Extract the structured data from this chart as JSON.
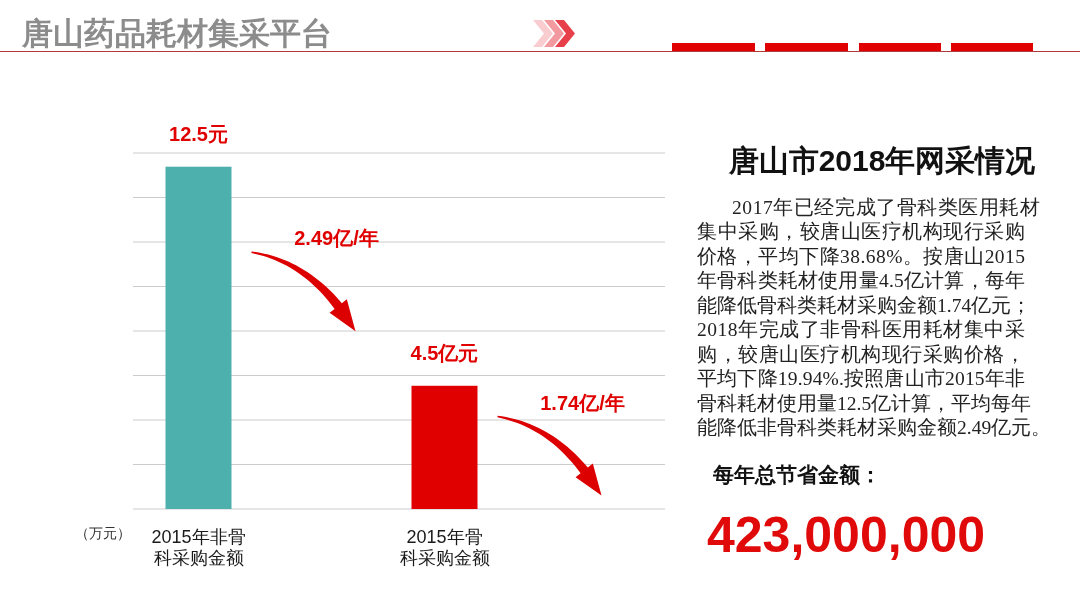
{
  "chart_data": [
    {
      "type": "bar",
      "title": "唐山药品耗材集采平台",
      "ylabel": "（万元）",
      "categories": [
        "2015年非骨科采购金额",
        "2015年骨科采购金额"
      ],
      "values": [
        12.5,
        4.5
      ],
      "colors": [
        "#4db0ad",
        "#e00000"
      ],
      "value_labels": [
        "12.5元",
        "4.5亿元"
      ],
      "ylim": [
        0,
        13
      ],
      "yticks": [
        {
          "value": 0,
          "label": null
        },
        {
          "value": 1.625,
          "label": null
        },
        {
          "value": 3.25,
          "label": null
        },
        {
          "value": 4.875,
          "label": null
        },
        {
          "value": 6.5,
          "label": null
        },
        {
          "value": 8.125,
          "label": null
        },
        {
          "value": 9.75,
          "label": null
        },
        {
          "value": 11.375,
          "label": null
        },
        {
          "value": 13,
          "label": null
        }
      ],
      "grid": "y",
      "tick_labels": "x",
      "annotations": [
        "2.49亿/年",
        "1.74亿/年"
      ]
    },
    {
      "type": "other",
      "title": "唐山市2018年网采情况",
      "annotations": [
        "2017年已经完成了骨科类医用耗材",
        "集中采购，较唐山医疗机构现行采购",
        "价格，平均下降38.68%。按唐山2015",
        "年骨科类耗材使用量4.5亿计算，每年",
        "能降低骨科类耗材采购金额1.74亿元；",
        "2018年完成了非骨科医用耗材集中采",
        "购，较唐山医疗机构现行采购价格，",
        "平均下降19.94%.按照唐山市2015年非",
        "骨科耗材使用量12.5亿计算，平均每年",
        "能降低非骨科类耗材采购金额2.49亿元。",
        "每年总节省金额：",
        "423,000,000"
      ]
    }
  ]
}
